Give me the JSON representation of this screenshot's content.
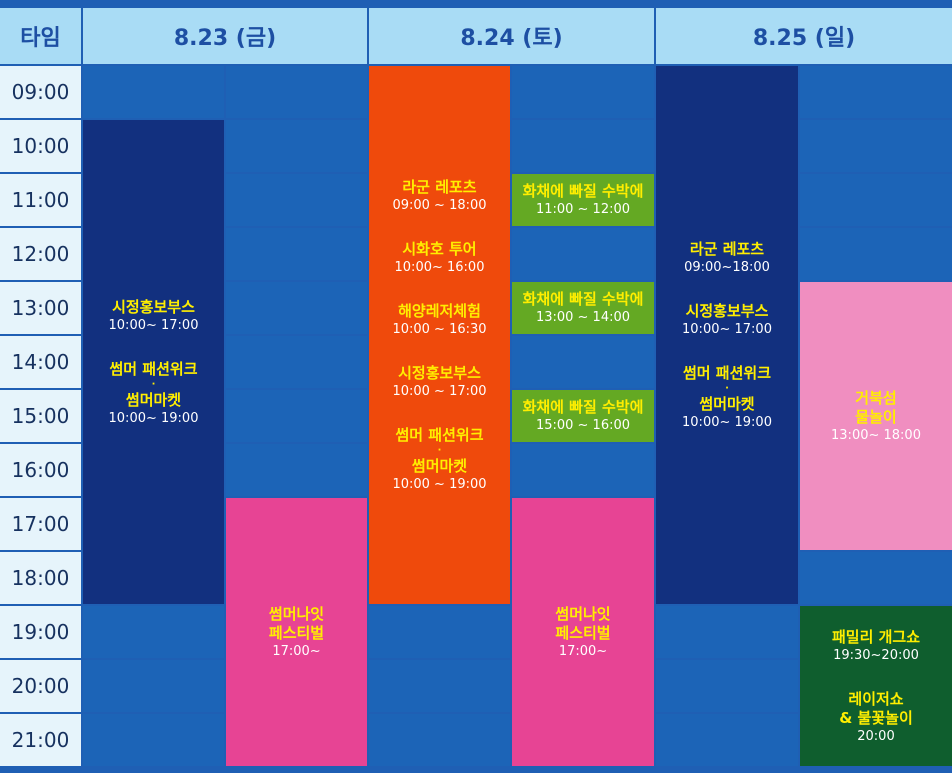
{
  "header": {
    "time_label": "타임",
    "days": [
      "8.23 (금)",
      "8.24 (토)",
      "8.25 (일)"
    ]
  },
  "times": [
    "09:00",
    "10:00",
    "11:00",
    "12:00",
    "13:00",
    "14:00",
    "15:00",
    "16:00",
    "17:00",
    "18:00",
    "19:00",
    "20:00",
    "21:00"
  ],
  "events": [
    {
      "id": "e1",
      "col": 0,
      "start": 1,
      "end": 10,
      "color": "navy",
      "groups": [
        {
          "lines": [
            {
              "t": "ttl",
              "v": "시정홍보부스"
            },
            {
              "t": "tm",
              "v": "10:00~ 17:00"
            }
          ]
        },
        {
          "lines": [
            {
              "t": "ttl",
              "v": "썸머 패션위크"
            },
            {
              "t": "dot",
              "v": "·"
            },
            {
              "t": "ttl",
              "v": "썸머마켓"
            },
            {
              "t": "tm",
              "v": "10:00~ 19:00"
            }
          ]
        }
      ]
    },
    {
      "id": "e2",
      "col": 1,
      "start": 8,
      "end": 13,
      "color": "pink",
      "groups": [
        {
          "lines": [
            {
              "t": "ttl",
              "v": "썸머나잇"
            },
            {
              "t": "ttl",
              "v": "페스티벌"
            },
            {
              "t": "tm",
              "v": "17:00~"
            }
          ]
        }
      ]
    },
    {
      "id": "e3",
      "col": 2,
      "start": 0,
      "end": 10,
      "color": "orange",
      "groups": [
        {
          "lines": [
            {
              "t": "ttl",
              "v": "라군 레포츠"
            },
            {
              "t": "tm",
              "v": "09:00 ~ 18:00"
            }
          ]
        },
        {
          "lines": [
            {
              "t": "ttl",
              "v": "시화호 투어"
            },
            {
              "t": "tm",
              "v": "10:00~ 16:00"
            }
          ]
        },
        {
          "lines": [
            {
              "t": "ttl",
              "v": "해양레저체험"
            },
            {
              "t": "tm",
              "v": "10:00 ~ 16:30"
            }
          ]
        },
        {
          "lines": [
            {
              "t": "ttl",
              "v": "시정홍보부스"
            },
            {
              "t": "tm",
              "v": "10:00 ~ 17:00"
            }
          ]
        },
        {
          "lines": [
            {
              "t": "ttl",
              "v": "썸머 패션위크"
            },
            {
              "t": "dot",
              "v": "·"
            },
            {
              "t": "ttl",
              "v": "썸머마켓"
            },
            {
              "t": "tm",
              "v": "10:00 ~ 19:00"
            }
          ]
        }
      ]
    },
    {
      "id": "e4",
      "col": 3,
      "start": 2,
      "end": 3,
      "color": "green",
      "groups": [
        {
          "lines": [
            {
              "t": "ttl",
              "v": "화채에 빠질 수박에"
            },
            {
              "t": "tm",
              "v": "11:00 ~ 12:00"
            }
          ]
        }
      ]
    },
    {
      "id": "e5",
      "col": 3,
      "start": 4,
      "end": 5,
      "color": "green",
      "groups": [
        {
          "lines": [
            {
              "t": "ttl",
              "v": "화채에 빠질 수박에"
            },
            {
              "t": "tm",
              "v": "13:00 ~ 14:00"
            }
          ]
        }
      ]
    },
    {
      "id": "e6",
      "col": 3,
      "start": 6,
      "end": 7,
      "color": "green",
      "groups": [
        {
          "lines": [
            {
              "t": "ttl",
              "v": "화채에 빠질 수박에"
            },
            {
              "t": "tm",
              "v": "15:00 ~ 16:00"
            }
          ]
        }
      ]
    },
    {
      "id": "e7",
      "col": 3,
      "start": 8,
      "end": 13,
      "color": "pink",
      "groups": [
        {
          "lines": [
            {
              "t": "ttl",
              "v": "썸머나잇"
            },
            {
              "t": "ttl",
              "v": "페스티벌"
            },
            {
              "t": "tm",
              "v": "17:00~"
            }
          ]
        }
      ]
    },
    {
      "id": "e8",
      "col": 4,
      "start": 0,
      "end": 10,
      "color": "navy",
      "groups": [
        {
          "lines": [
            {
              "t": "ttl",
              "v": "라군 레포츠"
            },
            {
              "t": "tm",
              "v": "09:00~18:00"
            }
          ]
        },
        {
          "lines": [
            {
              "t": "ttl",
              "v": "시정홍보부스"
            },
            {
              "t": "tm",
              "v": "10:00~ 17:00"
            }
          ]
        },
        {
          "lines": [
            {
              "t": "ttl",
              "v": "썸머 패션위크"
            },
            {
              "t": "dot",
              "v": "·"
            },
            {
              "t": "ttl",
              "v": "썸머마켓"
            },
            {
              "t": "tm",
              "v": "10:00~ 19:00"
            }
          ]
        }
      ]
    },
    {
      "id": "e9",
      "col": 5,
      "start": 4,
      "end": 9,
      "color": "lpink",
      "groups": [
        {
          "lines": [
            {
              "t": "ttl",
              "v": "거북섬"
            },
            {
              "t": "ttl",
              "v": "물놀이"
            },
            {
              "t": "tm",
              "v": "13:00~ 18:00"
            }
          ]
        }
      ]
    },
    {
      "id": "e10",
      "col": 5,
      "start": 10,
      "end": 13,
      "color": "dgreen",
      "groups": [
        {
          "lines": [
            {
              "t": "ttl",
              "v": "패밀리 개그쇼"
            },
            {
              "t": "tm",
              "v": "19:30~20:00"
            }
          ]
        },
        {
          "lines": [
            {
              "t": "ttl",
              "v": "레이저쇼"
            },
            {
              "t": "ttl",
              "v": "& 불꽃놀이"
            },
            {
              "t": "tm",
              "v": "20:00"
            }
          ]
        }
      ]
    }
  ]
}
